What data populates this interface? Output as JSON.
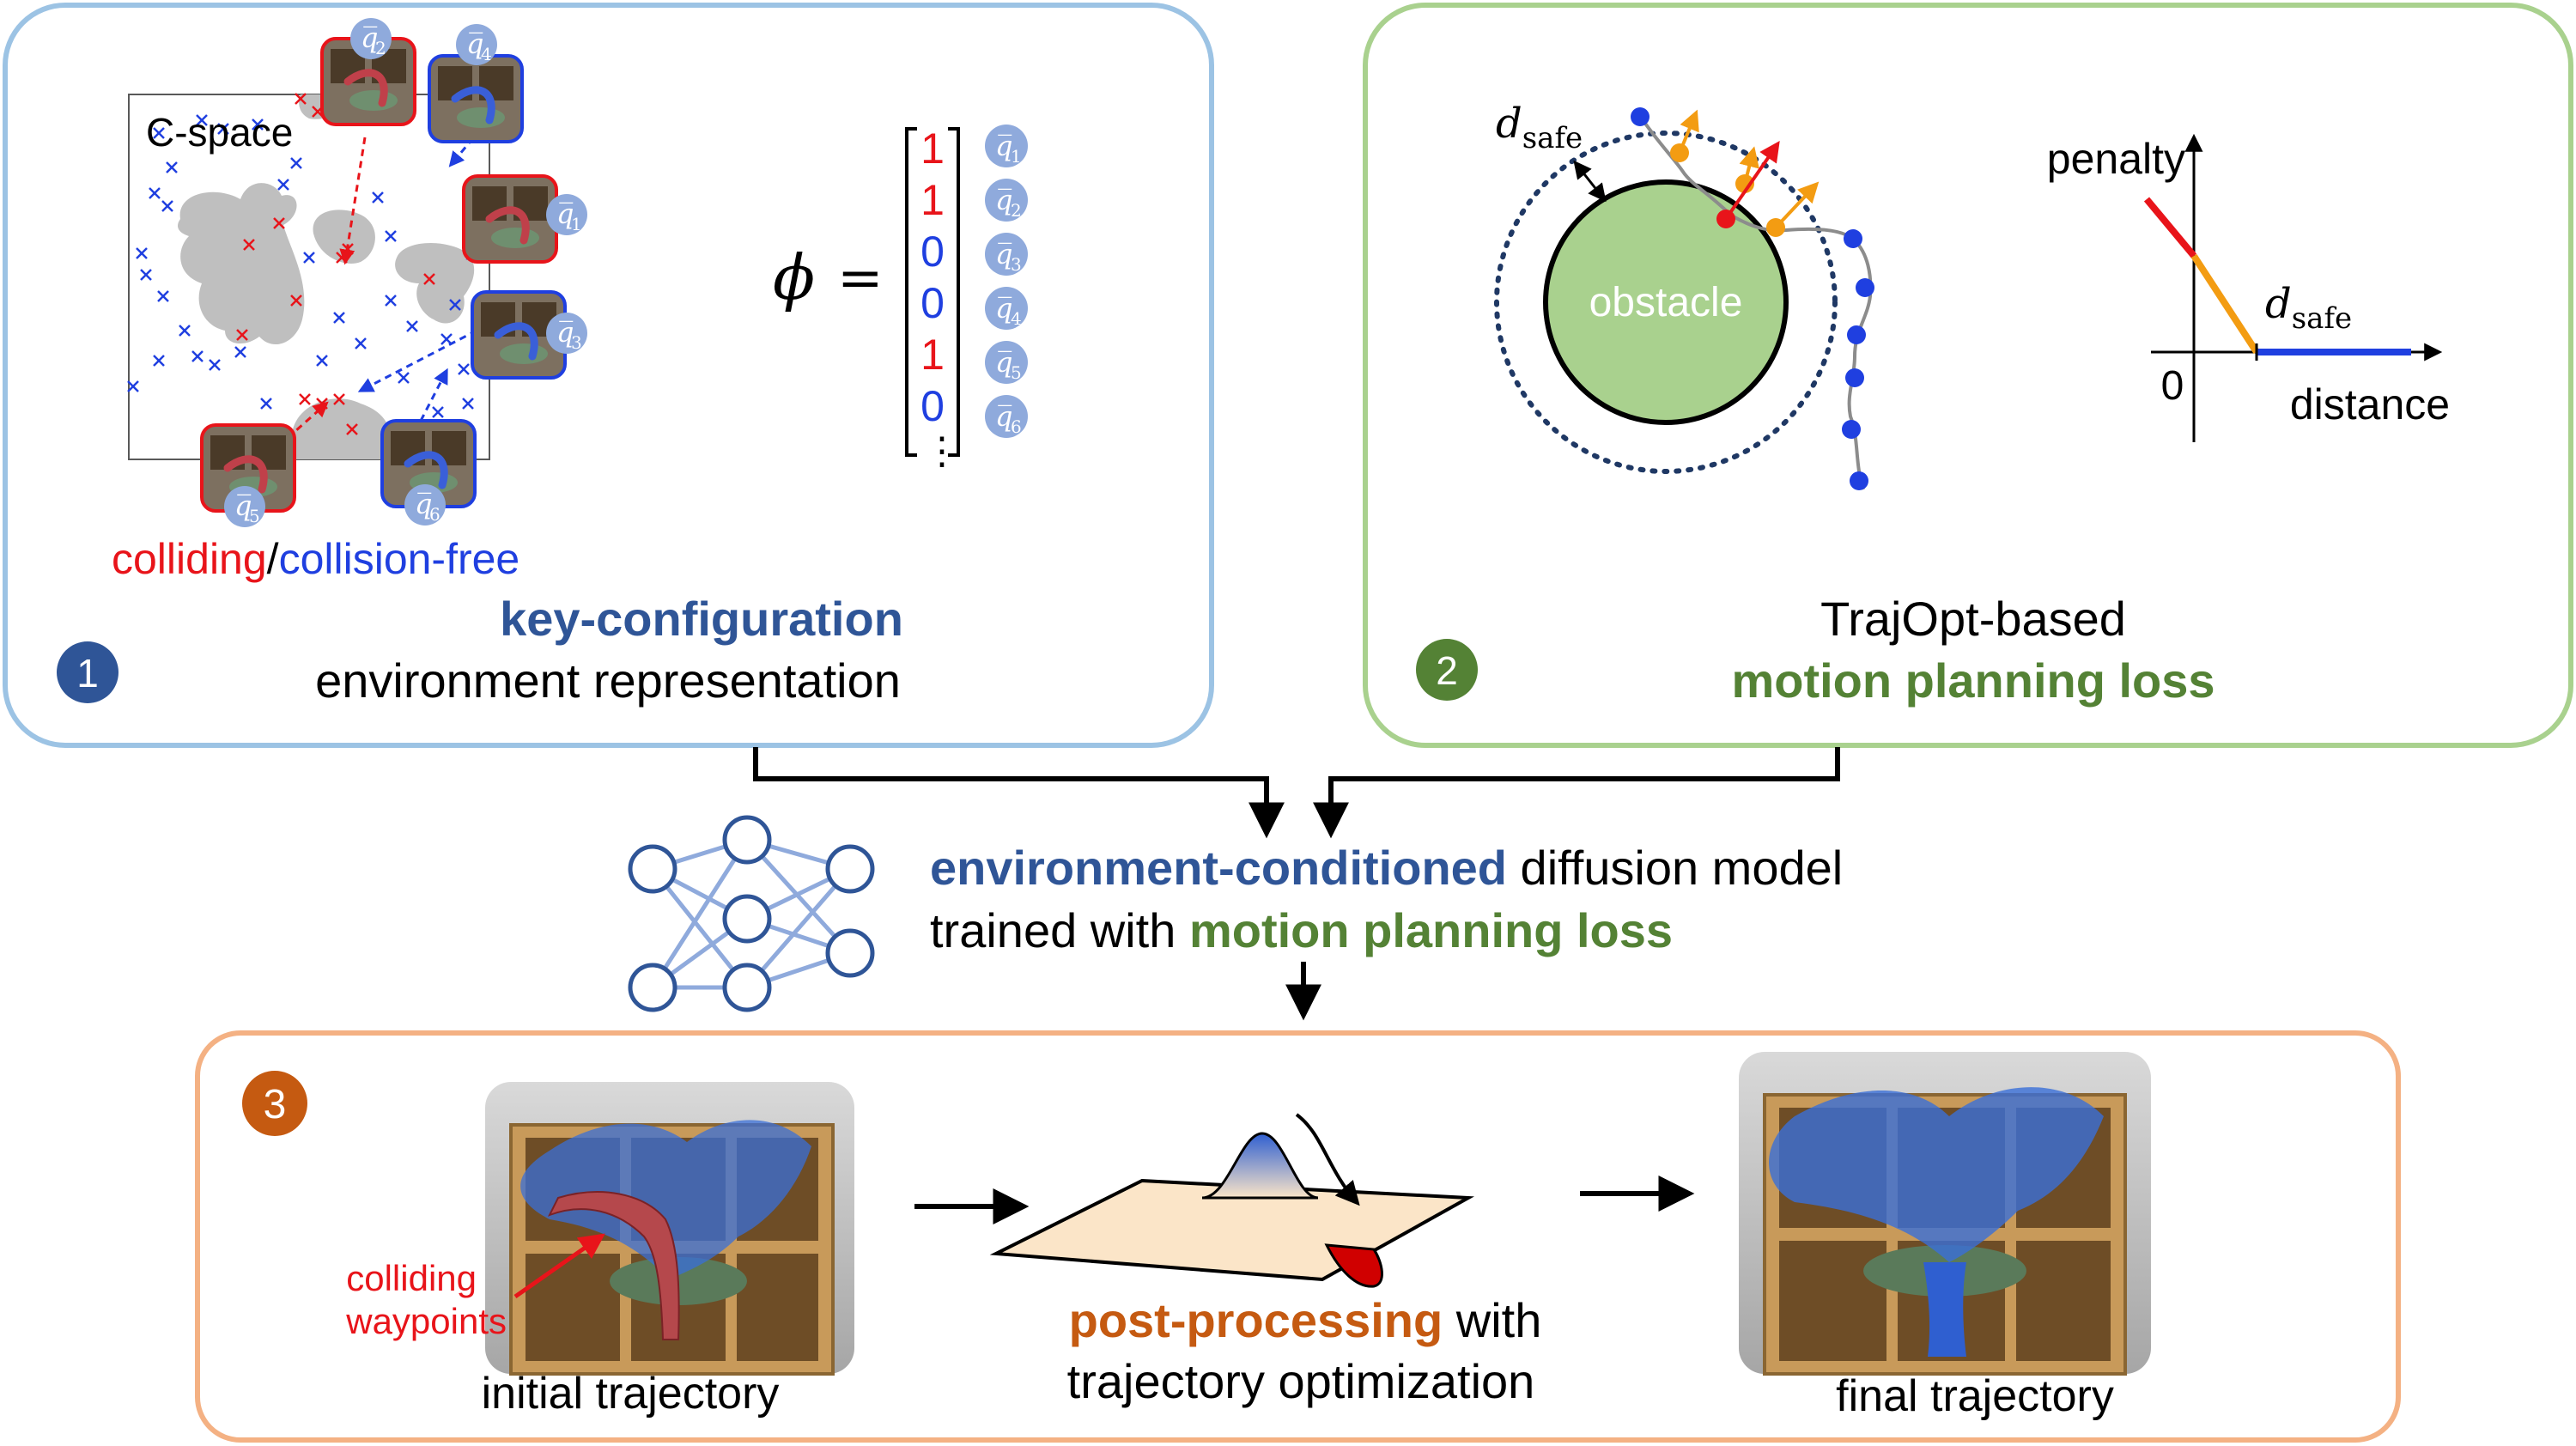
{
  "colors": {
    "panel1_border": "#9cc3e4",
    "panel2_border": "#a9d18e",
    "panel3_border": "#f4b183",
    "blue_accent": "#2f5597",
    "green_accent": "#548235",
    "orange_accent": "#c55a11",
    "red": "#e8141a",
    "blue": "#1f3fe0",
    "badge_blue": "#2f5597",
    "badge_green": "#548235",
    "badge_orange": "#c55a11",
    "obstacle_fill": "#a9d18e",
    "blob_fill": "#bfbfbf",
    "qbadge_fill": "#8faadc"
  },
  "panel1": {
    "badge": "1",
    "cspace_label": "C-space",
    "phi_symbol": "ϕ",
    "equals": "=",
    "vector": [
      {
        "value": "1",
        "state": "colliding"
      },
      {
        "value": "1",
        "state": "colliding"
      },
      {
        "value": "0",
        "state": "free"
      },
      {
        "value": "0",
        "state": "free"
      },
      {
        "value": "1",
        "state": "colliding"
      },
      {
        "value": "0",
        "state": "free"
      }
    ],
    "vector_dots": "⋮",
    "q_labels": [
      "q̅1",
      "q̅2",
      "q̅3",
      "q̅4",
      "q̅5",
      "q̅6"
    ],
    "q_base": "q̅",
    "q_subs": [
      "1",
      "2",
      "3",
      "4",
      "5",
      "6"
    ],
    "legend_colliding": "colliding",
    "legend_slash": "/",
    "legend_free": "collision-free",
    "title_bold": "key-configuration",
    "title_rest": "environment representation"
  },
  "panel2": {
    "badge": "2",
    "d_safe_d": "d",
    "d_safe_sub": "safe",
    "obstacle_label": "obstacle",
    "penalty_label": "penalty",
    "distance_label": "distance",
    "zero_label": "0",
    "title_line1": "TrajOpt-based",
    "title_line2": "motion planning loss"
  },
  "middle": {
    "line1_bold": "environment-conditioned",
    "line1_rest": " diffusion model",
    "line2_start": "trained with ",
    "line2_bold": "motion planning loss"
  },
  "panel3": {
    "badge": "3",
    "colliding_waypoints_line1": "colliding",
    "colliding_waypoints_line2": "waypoints",
    "initial_caption": "initial trajectory",
    "post_bold": "post-processing",
    "post_rest": " with",
    "post_line2": "trajectory optimization",
    "final_caption": "final trajectory"
  }
}
